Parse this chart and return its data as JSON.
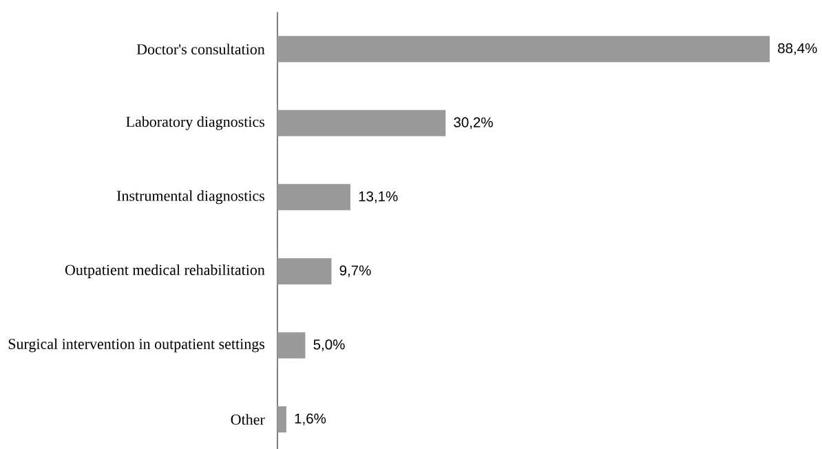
{
  "chart_data": {
    "type": "bar",
    "orientation": "horizontal",
    "tick_labels": "y",
    "categories": [
      "Doctor's consultation",
      "Laboratory diagnostics",
      "Instrumental diagnostics",
      "Outpatient medical rehabilitation",
      "Surgical intervention in outpatient settings",
      "Other"
    ],
    "values": [
      88.4,
      30.2,
      13.1,
      9.7,
      5.0,
      1.6
    ],
    "color": "#999999",
    "value_labels": [
      "88,4%",
      "30,2%",
      "13,1%",
      "9,7%",
      "5,0%",
      "1,6%"
    ]
  }
}
